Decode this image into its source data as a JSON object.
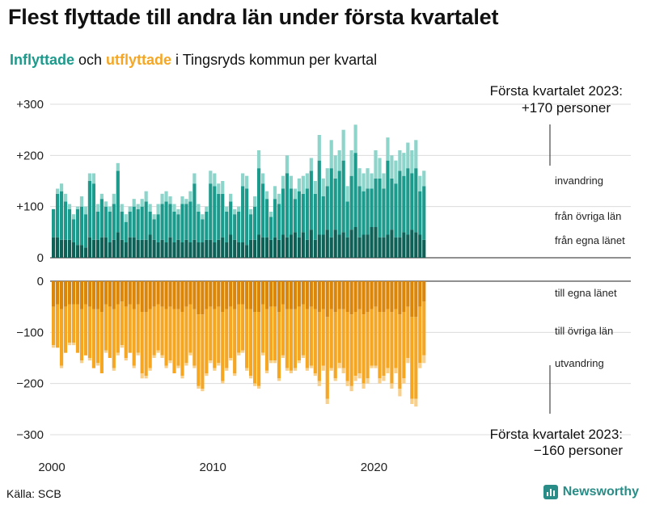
{
  "title": "Flest flyttade till andra län under första kvartalet",
  "subtitle": {
    "in_word": "Inflyttade",
    "and_word": " och ",
    "out_word": "utflyttade",
    "rest": " i Tingsryds kommun per kvartal"
  },
  "source": "Källa: SCB",
  "brand": "Newsworthy",
  "colors": {
    "in_egna": "#0e6157",
    "in_ovriga": "#1c9a8c",
    "in_invandring": "#8dd4cb",
    "out_egna": "#db8509",
    "out_ovriga": "#f5a623",
    "out_utvandring": "#f8d08c"
  },
  "chart_data": {
    "type": "bar",
    "stacked": true,
    "xlabel": "",
    "ylabel": "",
    "x_ticks": [
      "2000",
      "2010",
      "2020"
    ],
    "y_ticks": [
      "+300",
      "+200",
      "+100",
      "0",
      "0",
      "−100",
      "−200",
      "−300"
    ],
    "top_ylim": [
      0,
      300
    ],
    "bottom_ylim": [
      -300,
      0
    ],
    "quarters_start": "2000 Q1",
    "quarters_end": "2023 Q1",
    "series_labels": {
      "invandring": "invandring",
      "in_ovriga": "från övriga län",
      "in_egna": "från egna länet",
      "out_egna": "till egna länet",
      "out_ovriga": "till övriga län",
      "utvandring": "utvandring"
    },
    "annotation_top": {
      "line1": "Första kvartalet 2023:",
      "line2": "+170 personer"
    },
    "annotation_bottom": {
      "line1": "Första kvartalet 2023:",
      "line2": "−160 personer"
    },
    "inflyttade_totals": [
      95,
      135,
      145,
      125,
      105,
      85,
      100,
      120,
      100,
      165,
      165,
      105,
      125,
      110,
      100,
      125,
      185,
      105,
      85,
      100,
      115,
      105,
      115,
      130,
      105,
      85,
      105,
      125,
      130,
      120,
      105,
      95,
      120,
      115,
      130,
      165,
      105,
      85,
      100,
      170,
      165,
      145,
      150,
      100,
      125,
      95,
      100,
      165,
      160,
      95,
      120,
      210,
      165,
      130,
      90,
      140,
      125,
      160,
      200,
      160,
      135,
      155,
      160,
      165,
      195,
      150,
      240,
      155,
      175,
      230,
      200,
      210,
      250,
      140,
      210,
      260,
      175,
      165,
      175,
      165,
      210,
      195,
      165,
      235,
      200,
      190,
      210,
      205,
      225,
      210,
      230,
      160,
      170
    ],
    "inflyttade_invandring": [
      0,
      10,
      15,
      15,
      10,
      10,
      5,
      20,
      15,
      15,
      20,
      15,
      10,
      10,
      10,
      20,
      15,
      15,
      15,
      10,
      15,
      10,
      15,
      20,
      15,
      10,
      20,
      20,
      20,
      15,
      15,
      10,
      15,
      10,
      20,
      20,
      15,
      10,
      10,
      25,
      25,
      20,
      25,
      10,
      15,
      10,
      10,
      25,
      25,
      10,
      20,
      35,
      20,
      15,
      10,
      25,
      20,
      25,
      35,
      25,
      20,
      25,
      35,
      30,
      25,
      25,
      50,
      35,
      35,
      55,
      45,
      40,
      60,
      30,
      50,
      55,
      35,
      35,
      40,
      30,
      55,
      40,
      30,
      45,
      45,
      45,
      40,
      45,
      50,
      45,
      55,
      30,
      30
    ],
    "inflyttade_egna": [
      40,
      40,
      35,
      35,
      35,
      30,
      25,
      25,
      20,
      40,
      35,
      35,
      40,
      40,
      30,
      35,
      50,
      35,
      30,
      40,
      40,
      35,
      35,
      35,
      45,
      35,
      30,
      35,
      30,
      40,
      30,
      35,
      30,
      35,
      30,
      35,
      30,
      30,
      35,
      35,
      30,
      35,
      40,
      30,
      45,
      35,
      30,
      30,
      25,
      35,
      35,
      45,
      40,
      40,
      35,
      40,
      35,
      45,
      40,
      45,
      50,
      40,
      50,
      35,
      55,
      35,
      45,
      45,
      55,
      40,
      55,
      45,
      50,
      40,
      55,
      60,
      40,
      45,
      45,
      60,
      60,
      40,
      40,
      45,
      55,
      40,
      40,
      50,
      45,
      55,
      50,
      45,
      35
    ],
    "utflyttade_totals": [
      130,
      130,
      170,
      140,
      125,
      125,
      140,
      160,
      145,
      155,
      170,
      165,
      180,
      140,
      150,
      175,
      145,
      130,
      155,
      140,
      170,
      145,
      190,
      190,
      175,
      150,
      140,
      150,
      170,
      160,
      180,
      170,
      190,
      165,
      145,
      170,
      210,
      215,
      185,
      160,
      175,
      165,
      200,
      175,
      155,
      185,
      145,
      140,
      175,
      190,
      205,
      210,
      145,
      180,
      160,
      160,
      195,
      150,
      175,
      180,
      175,
      160,
      150,
      175,
      170,
      185,
      205,
      175,
      240,
      175,
      195,
      170,
      180,
      205,
      215,
      195,
      190,
      210,
      200,
      170,
      170,
      200,
      195,
      180,
      210,
      180,
      225,
      200,
      160,
      240,
      245,
      170,
      160
    ],
    "utflyttade_utvandring": [
      5,
      0,
      5,
      0,
      5,
      5,
      0,
      5,
      0,
      5,
      0,
      5,
      0,
      5,
      0,
      5,
      5,
      5,
      5,
      0,
      5,
      5,
      10,
      5,
      5,
      5,
      5,
      5,
      5,
      5,
      0,
      5,
      5,
      5,
      5,
      5,
      5,
      5,
      5,
      5,
      5,
      5,
      5,
      5,
      5,
      5,
      5,
      5,
      5,
      5,
      5,
      5,
      5,
      5,
      5,
      5,
      5,
      5,
      5,
      5,
      5,
      5,
      5,
      5,
      5,
      5,
      10,
      10,
      10,
      5,
      5,
      10,
      10,
      10,
      10,
      10,
      10,
      10,
      10,
      5,
      5,
      10,
      10,
      10,
      10,
      10,
      15,
      10,
      10,
      10,
      15,
      10,
      15
    ],
    "utflyttade_egna": [
      50,
      45,
      55,
      50,
      45,
      45,
      45,
      55,
      45,
      50,
      55,
      55,
      60,
      45,
      50,
      55,
      45,
      40,
      50,
      45,
      55,
      45,
      60,
      60,
      55,
      50,
      45,
      50,
      55,
      50,
      55,
      55,
      60,
      50,
      45,
      55,
      65,
      65,
      55,
      50,
      55,
      50,
      60,
      55,
      50,
      55,
      45,
      45,
      55,
      55,
      60,
      60,
      45,
      55,
      50,
      50,
      60,
      45,
      55,
      55,
      55,
      50,
      45,
      55,
      50,
      55,
      60,
      55,
      70,
      55,
      60,
      55,
      55,
      60,
      65,
      60,
      55,
      65,
      60,
      55,
      50,
      60,
      60,
      55,
      60,
      55,
      65,
      60,
      50,
      70,
      70,
      50,
      40
    ]
  }
}
